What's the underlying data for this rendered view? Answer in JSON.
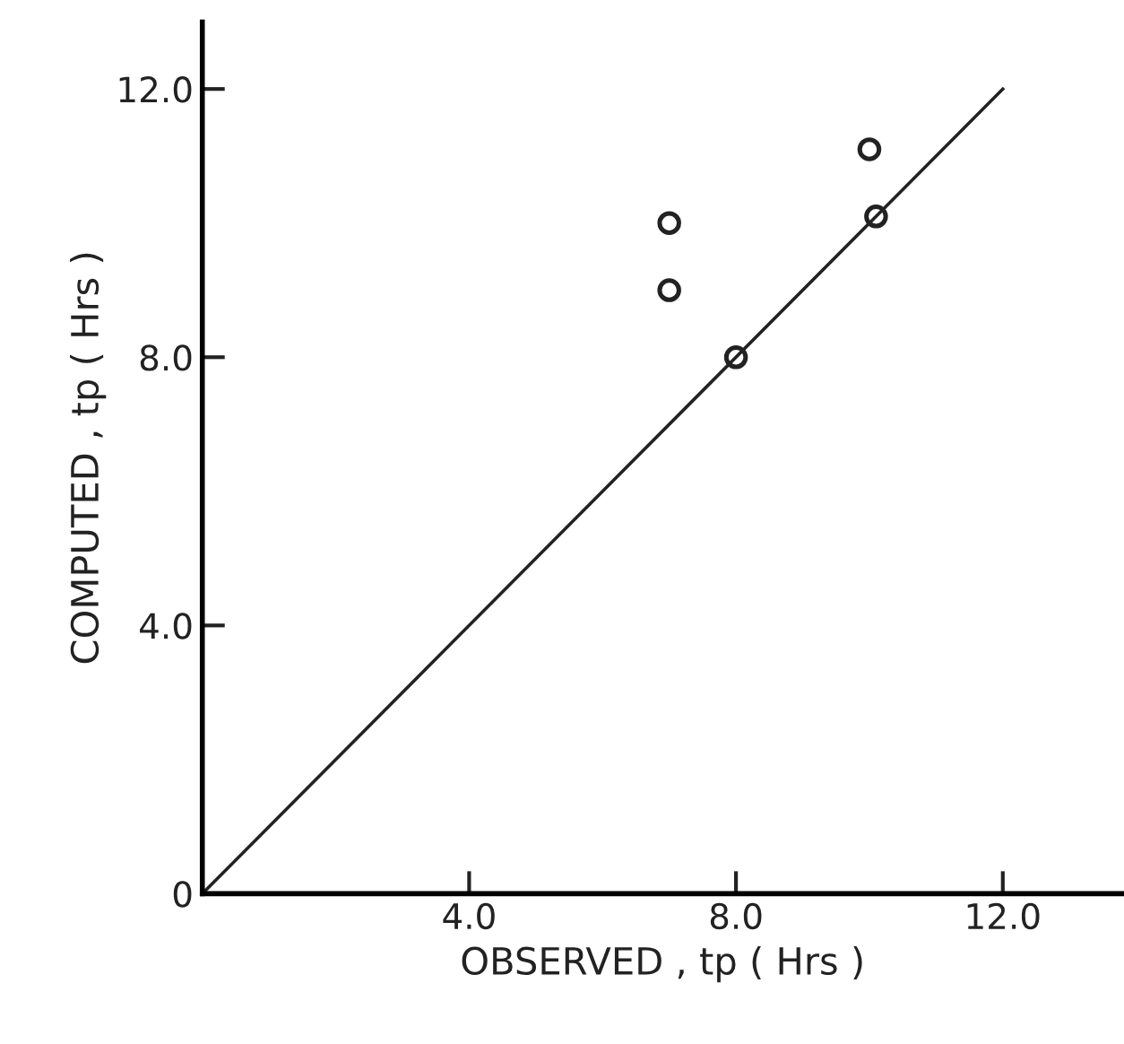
{
  "chart_data": {
    "type": "scatter",
    "xlabel": "OBSERVED , tp ( Hrs )",
    "ylabel": "COMPUTED , tp ( Hrs )",
    "xlim": [
      0,
      13.8
    ],
    "ylim": [
      0,
      13.0
    ],
    "xticks": [
      {
        "value": 0,
        "label": null
      },
      {
        "value": 4,
        "label": "4.0"
      },
      {
        "value": 8,
        "label": "8.0"
      },
      {
        "value": 12,
        "label": "12.0"
      }
    ],
    "yticks": [
      0,
      {
        "value": 4,
        "label": "4.0"
      },
      {
        "value": 8,
        "label": "8.0"
      },
      {
        "value": 12,
        "label": "12.0"
      }
    ],
    "grid": false,
    "legend": false,
    "series": [
      {
        "color": "#222222",
        "marker": "circle",
        "x": [
          7.0,
          7.0,
          8.0,
          10.0,
          10.1
        ],
        "values": [
          10.0,
          9.0,
          8.0,
          11.1,
          10.1
        ]
      },
      {
        "type": "line",
        "color": "#222222",
        "marker": "none",
        "line_style": "solid",
        "x": [
          0,
          12.0
        ],
        "values": [
          0,
          12.0
        ]
      }
    ]
  }
}
